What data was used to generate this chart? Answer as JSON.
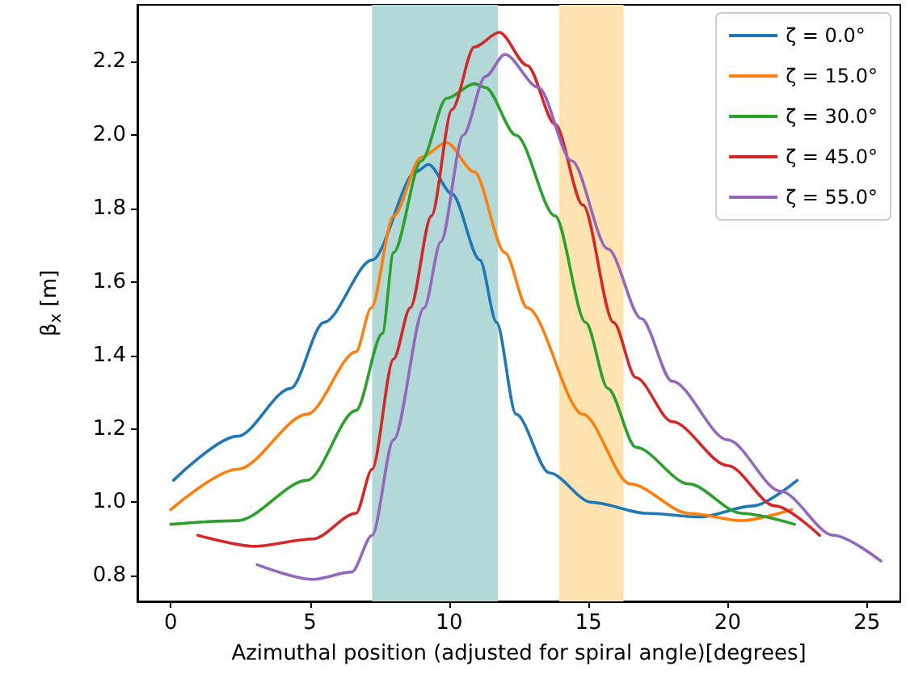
{
  "chart_data": {
    "type": "line",
    "xlabel": "Azimuthal position (adjusted for spiral angle)[degrees]",
    "ylabel": "β$_{x}$ [m]",
    "xlim": [
      -1.2,
      26.2
    ],
    "ylim": [
      0.73,
      2.355
    ],
    "xticks": [
      0,
      5,
      10,
      15,
      20,
      25
    ],
    "yticks": [
      0.8,
      {
        "value": 1,
        "label": "1.0"
      },
      1.2,
      1.4,
      1.6,
      1.8,
      {
        "value": 2,
        "label": "2.0"
      },
      2.2
    ],
    "grid": false,
    "legend": "top right",
    "line_style": "solid",
    "marker": "none",
    "bands": [
      {
        "axis": "x",
        "from": 7.23,
        "to": 11.75,
        "color": "#b2d8d8"
      },
      {
        "axis": "x",
        "from": 13.95,
        "to": 16.26,
        "color": "#ffe4b2"
      }
    ],
    "series": [
      {
        "name": "ζ = 0.0°",
        "color": "#1f77b4",
        "x": [
          0.1,
          2.4,
          4.3,
          5.5,
          7.23,
          8.8,
          9.26,
          10.1,
          11.1,
          11.7,
          12.4,
          13.6,
          15.1,
          17.1,
          19.0,
          20.9,
          22.5
        ],
        "values": [
          1.06,
          1.18,
          1.31,
          1.49,
          1.66,
          1.9,
          1.92,
          1.84,
          1.66,
          1.49,
          1.24,
          1.08,
          1.0,
          0.97,
          0.96,
          0.99,
          1.06
        ]
      },
      {
        "name": "ζ = 15.0°",
        "color": "#ff7f0e",
        "x": [
          0.0,
          2.4,
          4.9,
          6.65,
          7.2,
          8.0,
          9.0,
          9.9,
          10.9,
          12.0,
          12.8,
          14.8,
          16.5,
          18.6,
          20.5,
          22.3
        ],
        "values": [
          0.98,
          1.09,
          1.24,
          1.41,
          1.53,
          1.78,
          1.94,
          1.98,
          1.9,
          1.68,
          1.53,
          1.24,
          1.05,
          0.97,
          0.95,
          0.98
        ]
      },
      {
        "name": "ζ = 30.0°",
        "color": "#2ca02c",
        "x": [
          0.0,
          2.4,
          4.9,
          6.65,
          7.6,
          8.0,
          9.0,
          9.9,
          10.9,
          11.3,
          12.4,
          13.8,
          14.9,
          15.7,
          16.7,
          18.6,
          20.5,
          22.4
        ],
        "values": [
          0.94,
          0.95,
          1.06,
          1.25,
          1.46,
          1.68,
          1.93,
          2.1,
          2.14,
          2.13,
          2.0,
          1.78,
          1.49,
          1.31,
          1.15,
          1.05,
          0.97,
          0.94
        ]
      },
      {
        "name": "ζ = 45.0°",
        "color": "#d62728",
        "x": [
          0.97,
          3.0,
          5.1,
          6.65,
          7.23,
          8.0,
          8.6,
          9.36,
          10.1,
          10.9,
          11.8,
          12.8,
          13.8,
          14.8,
          15.9,
          16.7,
          18.0,
          20.0,
          21.7,
          23.3
        ],
        "values": [
          0.91,
          0.88,
          0.9,
          0.97,
          1.09,
          1.39,
          1.53,
          1.78,
          2.07,
          2.24,
          2.28,
          2.19,
          2.03,
          1.81,
          1.49,
          1.34,
          1.22,
          1.1,
          0.99,
          0.91
        ]
      },
      {
        "name": "ζ = 55.0°",
        "color": "#9467bd",
        "x": [
          3.1,
          5.1,
          6.5,
          7.23,
          8.0,
          9.1,
          9.7,
          10.5,
          11.3,
          12.0,
          13.2,
          14.4,
          15.7,
          16.9,
          18.0,
          20.0,
          21.9,
          23.8,
          25.5
        ],
        "values": [
          0.83,
          0.79,
          0.81,
          0.91,
          1.17,
          1.53,
          1.71,
          2.0,
          2.16,
          2.22,
          2.13,
          1.93,
          1.69,
          1.5,
          1.33,
          1.17,
          1.03,
          0.91,
          0.84
        ]
      }
    ]
  }
}
